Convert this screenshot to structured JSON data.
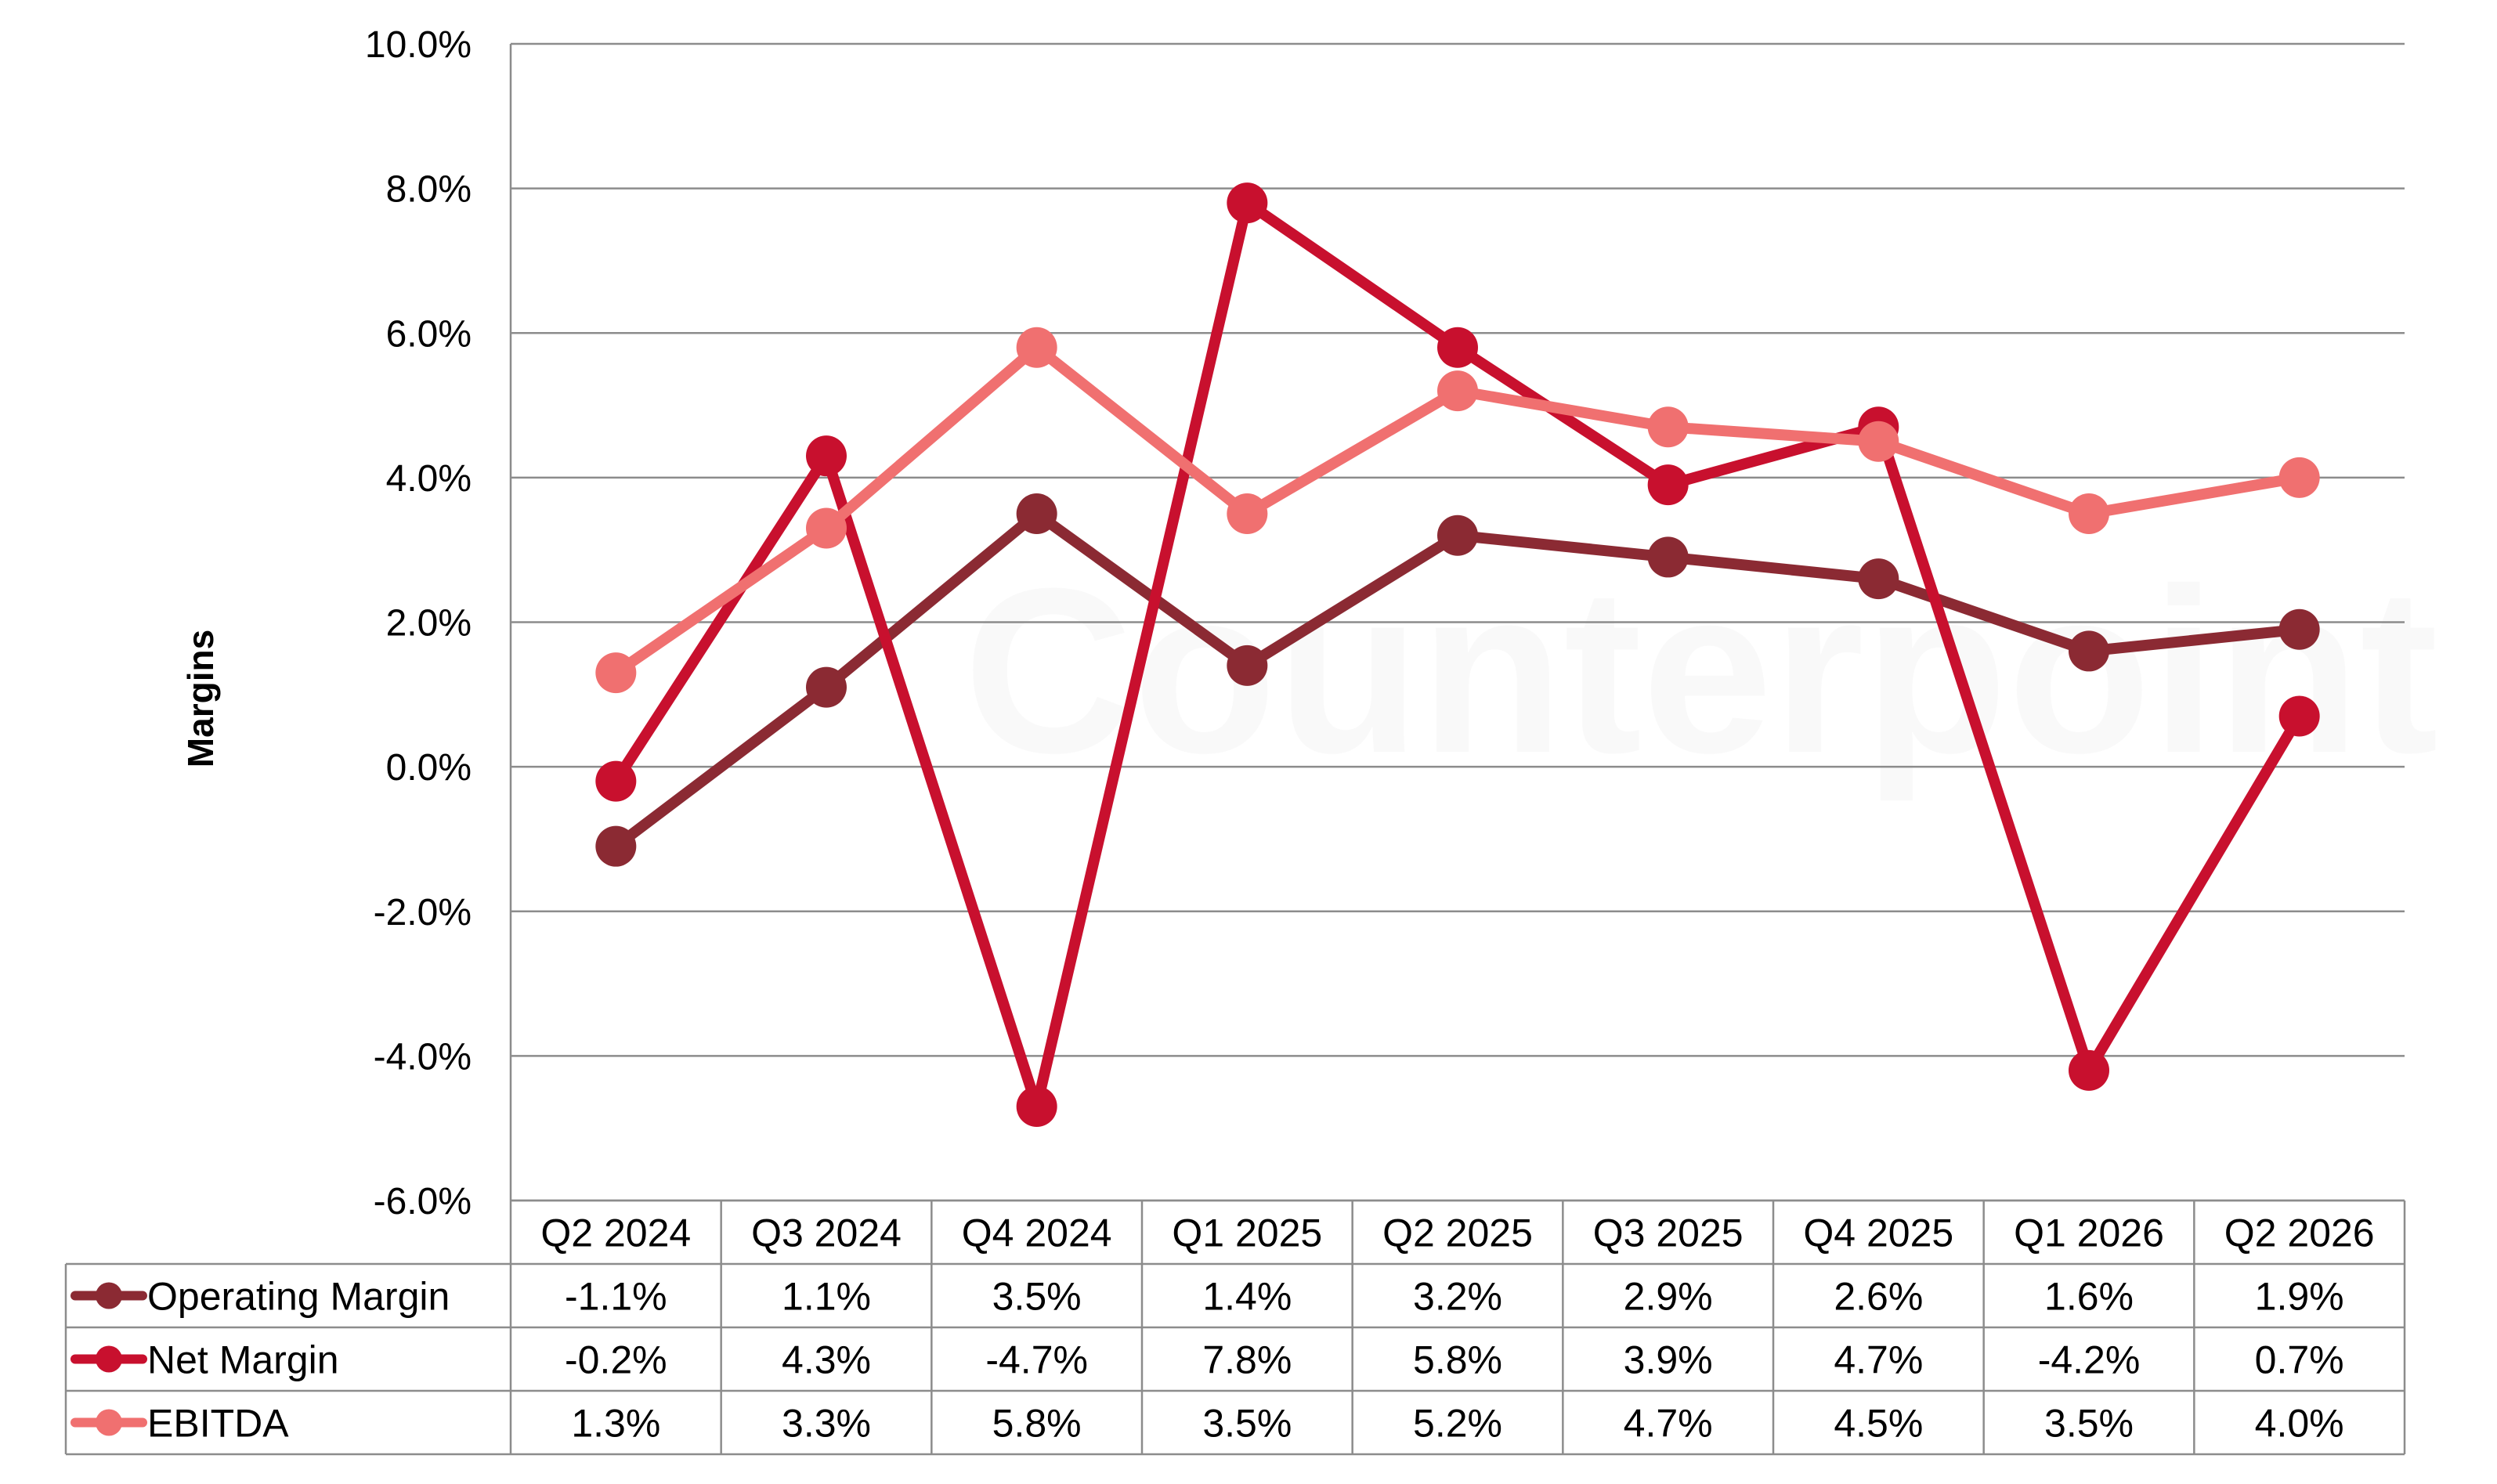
{
  "chart_data": {
    "type": "line",
    "title": "",
    "xlabel": "",
    "ylabel": "Margins",
    "ylim": [
      -6.0,
      10.0
    ],
    "ytick_step": 2.0,
    "y_format": "percent_1dp",
    "grid": true,
    "legend": "data-table-left",
    "watermark": "Counterpoint",
    "categories": [
      "Q2 2024",
      "Q3 2024",
      "Q4 2024",
      "Q1 2025",
      "Q2 2025",
      "Q3 2025",
      "Q4 2025",
      "Q1 2026",
      "Q2 2026"
    ],
    "series": [
      {
        "name": "Operating Margin",
        "color": "#8B2A33",
        "values": [
          -1.1,
          1.1,
          3.5,
          1.4,
          3.2,
          2.9,
          2.6,
          1.6,
          1.9
        ],
        "labels": [
          "-1.1%",
          "1.1%",
          "3.5%",
          "1.4%",
          "3.2%",
          "2.9%",
          "2.6%",
          "1.6%",
          "1.9%"
        ]
      },
      {
        "name": "Net Margin",
        "color": "#C8102E",
        "values": [
          -0.2,
          4.3,
          -4.7,
          7.8,
          5.8,
          3.9,
          4.7,
          -4.2,
          0.7
        ],
        "labels": [
          "-0.2%",
          "4.3%",
          "-4.7%",
          "7.8%",
          "5.8%",
          "3.9%",
          "4.7%",
          "-4.2%",
          "0.7%"
        ]
      },
      {
        "name": "EBITDA",
        "color": "#F07070",
        "values": [
          1.3,
          3.3,
          5.8,
          3.5,
          5.2,
          4.7,
          4.5,
          3.5,
          4.0
        ],
        "labels": [
          "1.3%",
          "3.3%",
          "5.8%",
          "3.5%",
          "5.2%",
          "4.7%",
          "4.5%",
          "3.5%",
          "4.0%"
        ]
      }
    ]
  }
}
